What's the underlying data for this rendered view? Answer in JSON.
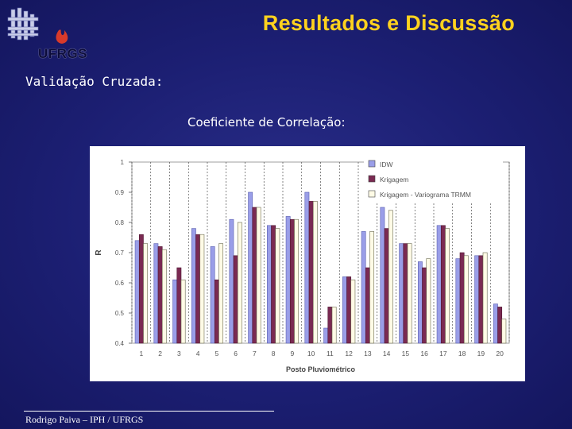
{
  "header": {
    "logo_text": "UFRGS",
    "title": "Resultados e Discussão"
  },
  "subtitle": "Validação Cruzada:",
  "chart_heading": "Coeficiente de Correlação:",
  "footer": "Rodrigo Paiva – IPH / UFRGS",
  "colors": {
    "background": "#1c1f73",
    "title": "#ffd21e",
    "idw": "#9a9ee8",
    "krigagem": "#7a2a52",
    "krigagem_trmm": "#fffbe6"
  },
  "chart_data": {
    "type": "bar",
    "xlabel": "Posto Pluviométrico",
    "ylabel": "R",
    "ylim": [
      0.4,
      1.0
    ],
    "yticks": [
      "1",
      "0.9",
      "0.8",
      "0.7",
      "0.6",
      "0.5",
      "0.4"
    ],
    "ytick_values": [
      1.0,
      0.9,
      0.8,
      0.7,
      0.6,
      0.5,
      0.4
    ],
    "grid": "vertical",
    "legend": "top-right",
    "categories": [
      "1",
      "2",
      "3",
      "4",
      "5",
      "6",
      "7",
      "8",
      "9",
      "10",
      "11",
      "12",
      "13",
      "14",
      "15",
      "16",
      "17",
      "18",
      "19",
      "20"
    ],
    "series": [
      {
        "name": "IDW",
        "values": [
          0.74,
          0.73,
          0.61,
          0.78,
          0.72,
          0.81,
          0.9,
          0.79,
          0.82,
          0.9,
          0.45,
          0.62,
          0.77,
          0.85,
          0.73,
          0.67,
          0.79,
          0.68,
          0.69,
          0.53
        ]
      },
      {
        "name": "Krigagem",
        "values": [
          0.76,
          0.72,
          0.65,
          0.76,
          0.61,
          0.69,
          0.85,
          0.79,
          0.81,
          0.87,
          0.52,
          0.62,
          0.65,
          0.78,
          0.73,
          0.65,
          0.79,
          0.7,
          0.69,
          0.52
        ]
      },
      {
        "name": "Krigagem - Variograma TRMM",
        "values": [
          0.73,
          0.71,
          0.61,
          0.76,
          0.73,
          0.8,
          0.85,
          0.78,
          0.81,
          0.87,
          0.52,
          0.61,
          0.77,
          0.84,
          0.73,
          0.68,
          0.78,
          0.69,
          0.7,
          0.48
        ]
      }
    ]
  }
}
